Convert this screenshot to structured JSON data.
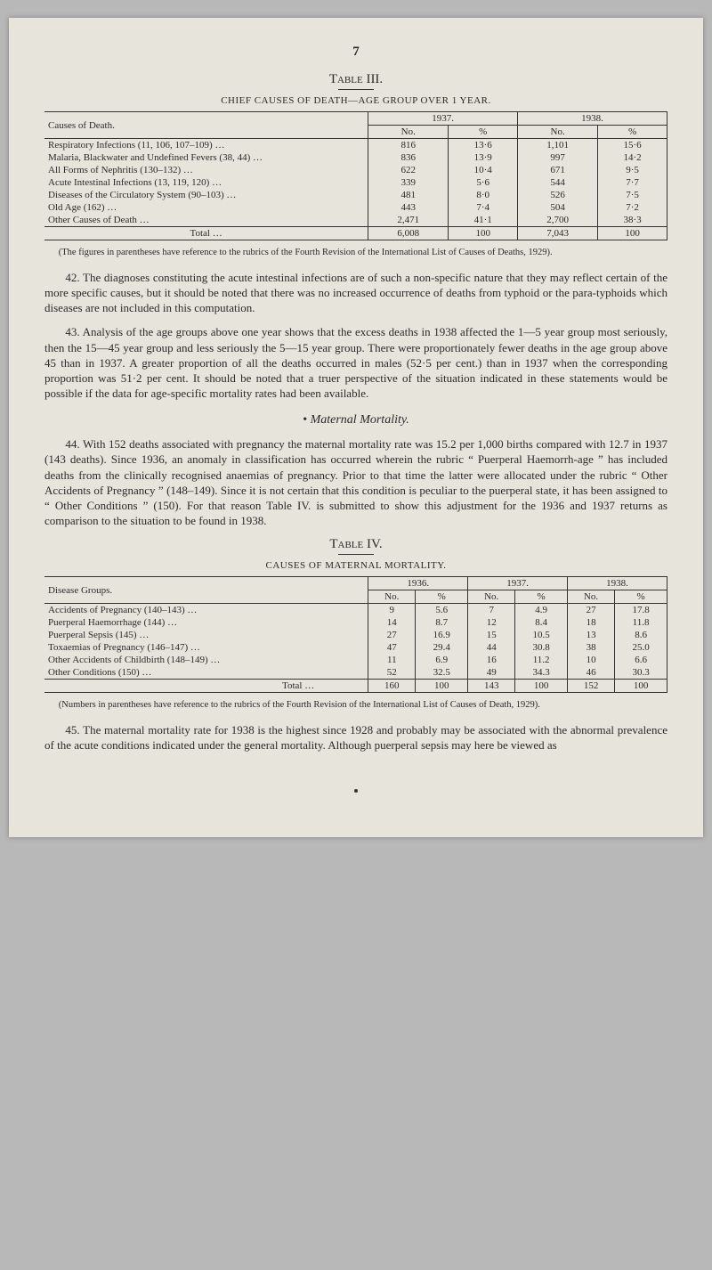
{
  "page_number": "7",
  "table3": {
    "label": "Table III.",
    "caption": "CHIEF CAUSES OF DEATH—AGE GROUP OVER 1 YEAR.",
    "col_group_main": "Causes of Death.",
    "year_a": "1937.",
    "year_b": "1938.",
    "sub_no": "No.",
    "sub_pct": "%",
    "rows": [
      {
        "cause": "Respiratory Infections (11, 106, 107–109)      …",
        "a_no": "816",
        "a_pct": "13·6",
        "b_no": "1,101",
        "b_pct": "15·6"
      },
      {
        "cause": "Malaria, Blackwater and Undefined Fevers (38, 44)   …",
        "a_no": "836",
        "a_pct": "13·9",
        "b_no": "997",
        "b_pct": "14·2"
      },
      {
        "cause": "All Forms of Nephritis (130–132)   …",
        "a_no": "622",
        "a_pct": "10·4",
        "b_no": "671",
        "b_pct": "9·5"
      },
      {
        "cause": "Acute Intestinal Infections (13, 119, 120)   …",
        "a_no": "339",
        "a_pct": "5·6",
        "b_no": "544",
        "b_pct": "7·7"
      },
      {
        "cause": "Diseases of the Circulatory System (90–103) …",
        "a_no": "481",
        "a_pct": "8·0",
        "b_no": "526",
        "b_pct": "7·5"
      },
      {
        "cause": "Old Age (162) …",
        "a_no": "443",
        "a_pct": "7·4",
        "b_no": "504",
        "b_pct": "7·2"
      },
      {
        "cause": "Other Causes of Death …",
        "a_no": "2,471",
        "a_pct": "41·1",
        "b_no": "2,700",
        "b_pct": "38·3"
      }
    ],
    "total_label": "Total      …",
    "total": {
      "a_no": "6,008",
      "a_pct": "100",
      "b_no": "7,043",
      "b_pct": "100"
    },
    "footnote": "(The figures in parentheses have reference to the rubrics of the Fourth Revision of the International List of Causes of Deaths, 1929)."
  },
  "para42": "42. The diagnoses constituting the acute intestinal infections are of such a non-specific nature that they may reflect certain of the more specific causes, but it should be noted that there was no increased occurrence of deaths from typhoid or the para-typhoids which diseases are not included in this computation.",
  "para43": "43. Analysis of the age groups above one year shows that the excess deaths in 1938 affected the 1—5 year group most seriously, then the 15—45 year group and less seriously the 5—15 year group. There were proportionately fewer deaths in the age group above 45 than in 1937. A greater proportion of all the deaths occurred in males (52·5 per cent.) than in 1937 when the corresponding proportion was 51·2 per cent. It should be noted that a truer perspective of the situation indicated in these statements would be possible if the data for age-specific mortality rates had been available.",
  "maternal_head": "Maternal Mortality.",
  "para44": "44. With 152 deaths associated with pregnancy the maternal mortality rate was 15.2 per 1,000 births compared with 12.7 in 1937 (143 deaths). Since 1936, an anomaly in classification has occurred wherein the rubric “ Puerperal Haemorrh-age ” has included deaths from the clinically recognised anaemias of pregnancy. Prior to that time the latter were allocated under the rubric “ Other Accidents of Pregnancy ” (148–149). Since it is not certain that this condition is peculiar to the puerperal state, it has been assigned to “ Other Conditions ” (150). For that reason Table IV. is submitted to show this adjustment for the 1936 and 1937 returns as comparison to the situation to be found in 1938.",
  "table4": {
    "label": "Table IV.",
    "caption": "CAUSES OF MATERNAL MORTALITY.",
    "col_group_main": "Disease Groups.",
    "year_a": "1936.",
    "year_b": "1937.",
    "year_c": "1938.",
    "sub_no": "No.",
    "sub_pct": "%",
    "rows": [
      {
        "cause": "Accidents of Pregnancy (140–143)   …",
        "a_no": "9",
        "a_pct": "5.6",
        "b_no": "7",
        "b_pct": "4.9",
        "c_no": "27",
        "c_pct": "17.8"
      },
      {
        "cause": "Puerperal Haemorrhage (144)   …",
        "a_no": "14",
        "a_pct": "8.7",
        "b_no": "12",
        "b_pct": "8.4",
        "c_no": "18",
        "c_pct": "11.8"
      },
      {
        "cause": "Puerperal Sepsis (145)   …",
        "a_no": "27",
        "a_pct": "16.9",
        "b_no": "15",
        "b_pct": "10.5",
        "c_no": "13",
        "c_pct": "8.6"
      },
      {
        "cause": "Toxaemias of Pregnancy (146–147)   …",
        "a_no": "47",
        "a_pct": "29.4",
        "b_no": "44",
        "b_pct": "30.8",
        "c_no": "38",
        "c_pct": "25.0"
      },
      {
        "cause": "Other Accidents of Childbirth (148–149)   …",
        "a_no": "11",
        "a_pct": "6.9",
        "b_no": "16",
        "b_pct": "11.2",
        "c_no": "10",
        "c_pct": "6.6"
      },
      {
        "cause": "Other Conditions (150)   …",
        "a_no": "52",
        "a_pct": "32.5",
        "b_no": "49",
        "b_pct": "34.3",
        "c_no": "46",
        "c_pct": "30.3"
      }
    ],
    "total_label": "Total   …",
    "total": {
      "a_no": "160",
      "a_pct": "100",
      "b_no": "143",
      "b_pct": "100",
      "c_no": "152",
      "c_pct": "100"
    },
    "footnote": "(Numbers in parentheses have reference to the rubrics of the Fourth Revision of the International List of Causes of Death, 1929)."
  },
  "para45": "45. The maternal mortality rate for 1938 is the highest since 1928 and probably may be associated with the abnormal prevalence of the acute conditions indicated under the general mortality. Although puerperal sepsis may here be viewed as"
}
